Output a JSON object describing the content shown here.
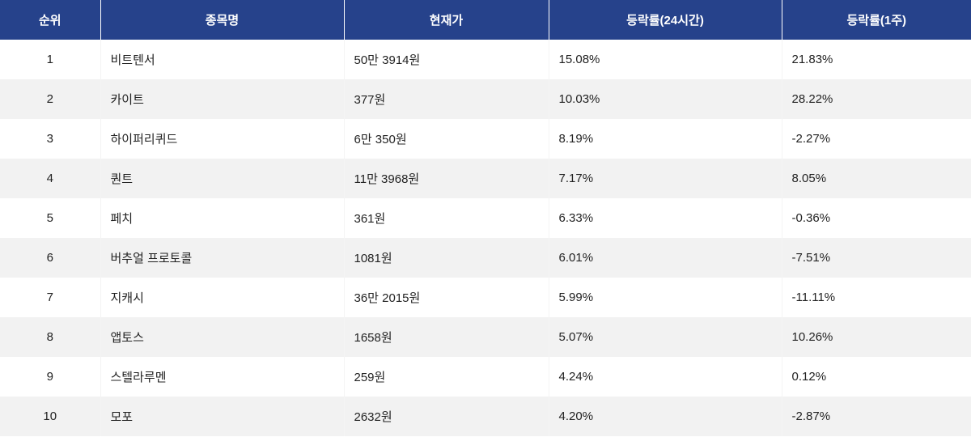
{
  "header_color": "#26428b",
  "columns": [
    "순위",
    "종목명",
    "현재가",
    "등락률(24시간)",
    "등락률(1주)"
  ],
  "rows": [
    {
      "rank": "1",
      "name": "비트텐서",
      "price": "50만 3914원",
      "change_24h": "15.08%",
      "change_1w": "21.83%"
    },
    {
      "rank": "2",
      "name": "카이트",
      "price": "377원",
      "change_24h": "10.03%",
      "change_1w": "28.22%"
    },
    {
      "rank": "3",
      "name": "하이퍼리퀴드",
      "price": "6만 350원",
      "change_24h": "8.19%",
      "change_1w": "-2.27%"
    },
    {
      "rank": "4",
      "name": "퀀트",
      "price": "11만 3968원",
      "change_24h": "7.17%",
      "change_1w": "8.05%"
    },
    {
      "rank": "5",
      "name": "페치",
      "price": "361원",
      "change_24h": "6.33%",
      "change_1w": "-0.36%"
    },
    {
      "rank": "6",
      "name": "버추얼 프로토콜",
      "price": "1081원",
      "change_24h": "6.01%",
      "change_1w": "-7.51%"
    },
    {
      "rank": "7",
      "name": "지캐시",
      "price": "36만 2015원",
      "change_24h": "5.99%",
      "change_1w": "-11.11%"
    },
    {
      "rank": "8",
      "name": "앱토스",
      "price": "1658원",
      "change_24h": "5.07%",
      "change_1w": "10.26%"
    },
    {
      "rank": "9",
      "name": "스텔라루멘",
      "price": "259원",
      "change_24h": "4.24%",
      "change_1w": "0.12%"
    },
    {
      "rank": "10",
      "name": "모포",
      "price": "2632원",
      "change_24h": "4.20%",
      "change_1w": "-2.87%"
    }
  ]
}
